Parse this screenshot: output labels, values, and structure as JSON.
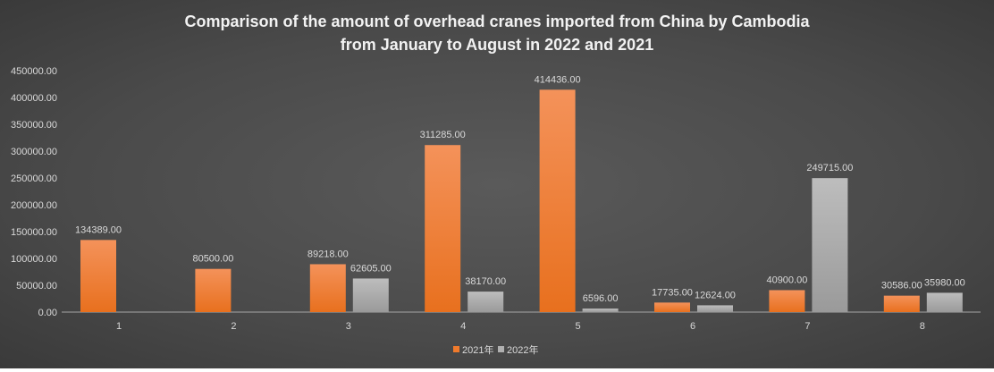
{
  "chart_data": {
    "type": "bar",
    "title_lines": [
      "Comparison of the amount of overhead cranes imported from China by Cambodia",
      "from January to August in 2022 and 2021"
    ],
    "categories": [
      "1",
      "2",
      "3",
      "4",
      "5",
      "6",
      "7",
      "8"
    ],
    "series": [
      {
        "name": "2021年",
        "color": "#f07a2c",
        "values": [
          134389.0,
          80500.0,
          89218.0,
          311285.0,
          414436.0,
          17735.0,
          40900.0,
          30586.0
        ]
      },
      {
        "name": "2022年",
        "color": "#b0b0b0",
        "values": [
          null,
          null,
          62605.0,
          38170.0,
          6596.0,
          12624.0,
          249715.0,
          35980.0
        ]
      }
    ],
    "y_ticks": [
      "0.00",
      "50000.00",
      "100000.00",
      "150000.00",
      "200000.00",
      "250000.00",
      "300000.00",
      "350000.00",
      "400000.00",
      "450000.00"
    ],
    "ylim": [
      0,
      450000
    ],
    "grid": false,
    "legend_position": "bottom"
  }
}
